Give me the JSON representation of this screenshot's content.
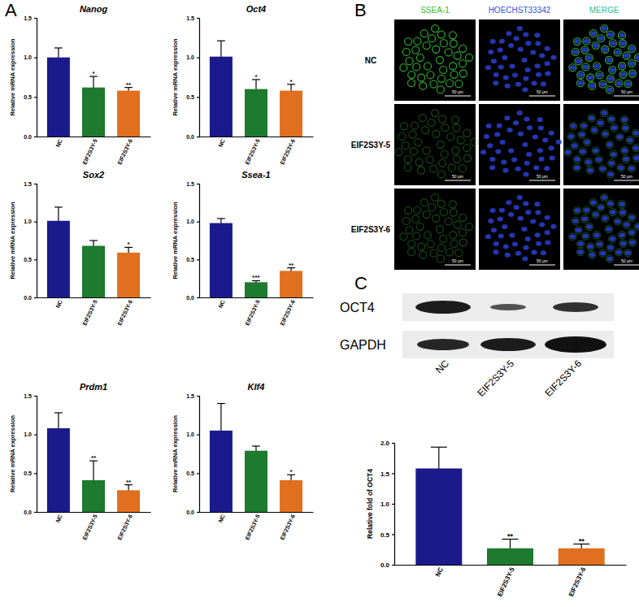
{
  "chart_data": [
    {
      "type": "bar",
      "title": "Nanog",
      "y_label": "Relative mRNA expression",
      "categories": [
        "NC",
        "EIF2S3Y-5",
        "EIF2S3Y-6"
      ],
      "values": [
        1.0,
        0.62,
        0.58
      ],
      "errors": [
        0.12,
        0.14,
        0.04
      ],
      "annotations": [
        null,
        "*",
        "**"
      ],
      "colors": [
        "#1a1a8c",
        "#1e7a2e",
        "#e07020"
      ],
      "ylim": [
        0,
        1.5
      ],
      "yticks": [
        {
          "value": 0,
          "label": "0.0"
        },
        0.5,
        {
          "value": 1,
          "label": "1.0"
        },
        1.5
      ]
    },
    {
      "type": "bar",
      "title": "Oct4",
      "y_label": "Relative mRNA expression",
      "categories": [
        "NC",
        "EIF2S3Y-5",
        "EIF2S3Y-6"
      ],
      "values": [
        1.01,
        0.6,
        0.58
      ],
      "errors": [
        0.2,
        0.12,
        0.08
      ],
      "annotations": [
        null,
        "*",
        "*"
      ],
      "colors": [
        "#1a1a8c",
        "#1e7a2e",
        "#e07020"
      ],
      "ylim": [
        0,
        1.5
      ],
      "yticks": [
        {
          "value": 0,
          "label": "0.0"
        },
        0.5,
        {
          "value": 1,
          "label": "1.0"
        },
        1.5
      ]
    },
    {
      "type": "bar",
      "title": "Sox2",
      "y_label": "Relative mRNA expression",
      "categories": [
        "NC",
        "EIF2S3Y-5",
        "EIF2S3Y-6"
      ],
      "values": [
        1.01,
        0.68,
        0.59
      ],
      "errors": [
        0.18,
        0.07,
        0.07
      ],
      "annotations": [
        null,
        null,
        "*"
      ],
      "colors": [
        "#1a1a8c",
        "#1e7a2e",
        "#e07020"
      ],
      "ylim": [
        0,
        1.5
      ],
      "yticks": [
        {
          "value": 0,
          "label": "0.0"
        },
        0.5,
        {
          "value": 1,
          "label": "1.0"
        },
        1.5
      ]
    },
    {
      "type": "bar",
      "title": "Ssea-1",
      "y_label": "Relative mRNA expression",
      "categories": [
        "NC",
        "EIF2S3Y-5",
        "EIF2S3Y-6"
      ],
      "values": [
        0.98,
        0.2,
        0.35
      ],
      "errors": [
        0.06,
        0.02,
        0.04
      ],
      "annotations": [
        null,
        "***",
        "**"
      ],
      "colors": [
        "#1a1a8c",
        "#1e7a2e",
        "#e07020"
      ],
      "ylim": [
        0,
        1.5
      ],
      "yticks": [
        {
          "value": 0,
          "label": "0.0"
        },
        0.5,
        {
          "value": 1,
          "label": "1.0"
        },
        1.5
      ]
    },
    {
      "type": "bar",
      "title": "Prdm1",
      "y_label": "Relative mRNA expression",
      "categories": [
        "NC",
        "EIF2S3Y-5",
        "EIF2S3Y-6"
      ],
      "values": [
        1.08,
        0.41,
        0.28
      ],
      "errors": [
        0.2,
        0.25,
        0.07
      ],
      "annotations": [
        null,
        "**",
        "**"
      ],
      "colors": [
        "#1a1a8c",
        "#1e7a2e",
        "#e07020"
      ],
      "ylim": [
        0,
        1.5
      ],
      "yticks": [
        {
          "value": 0,
          "label": "0.0"
        },
        0.5,
        {
          "value": 1,
          "label": "1.0"
        },
        1.5
      ]
    },
    {
      "type": "bar",
      "title": "Klf4",
      "y_label": "Relative mRNA expression",
      "categories": [
        "NC",
        "EIF2S3Y-5",
        "EIF2S3Y-6"
      ],
      "values": [
        1.05,
        0.79,
        0.41
      ],
      "errors": [
        0.35,
        0.06,
        0.07
      ],
      "annotations": [
        null,
        null,
        "*"
      ],
      "colors": [
        "#1a1a8c",
        "#1e7a2e",
        "#e07020"
      ],
      "ylim": [
        0,
        1.5
      ],
      "yticks": [
        {
          "value": 0,
          "label": "0.0"
        },
        0.5,
        {
          "value": 1,
          "label": "1.0"
        },
        1.5
      ]
    },
    {
      "type": "bar",
      "y_label": "Relative fold of OCT4",
      "categories": [
        "NC",
        "EIF2S3Y-5",
        "EIF2S3Y-6"
      ],
      "values": [
        1.58,
        0.27,
        0.27
      ],
      "errors": [
        0.35,
        0.15,
        0.07
      ],
      "annotations": [
        null,
        "**",
        "**"
      ],
      "colors": [
        "#1a1a8c",
        "#1e7a2e",
        "#e07020"
      ],
      "ylim": [
        0,
        2
      ],
      "yticks": [
        {
          "value": 0,
          "label": "0.0"
        },
        0.5,
        {
          "value": 1,
          "label": "1.0"
        },
        1.5,
        {
          "value": 2,
          "label": "2.0"
        }
      ]
    }
  ],
  "panel_labels": [
    "A",
    "B",
    "C"
  ],
  "microscopy": {
    "columns": [
      "SSEA-1",
      "HOECHST33342",
      "MERGE"
    ],
    "rows": [
      "NC",
      "EIF2S3Y-5",
      "EIF2S3Y-6"
    ],
    "scale_bar": "50 μm"
  },
  "blot": {
    "bands": [
      "OCT4",
      "GAPDH"
    ],
    "lanes": [
      "NC",
      "EIF2S3Y-5",
      "EIF2S3Y-6"
    ]
  }
}
